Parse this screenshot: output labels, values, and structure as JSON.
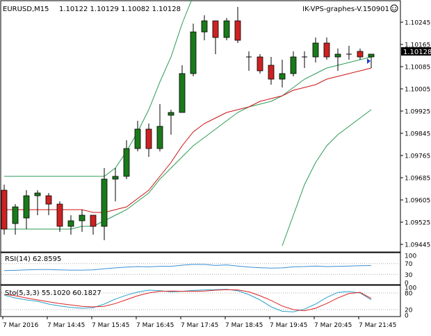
{
  "header": {
    "symbol": "EURUSD,M15",
    "ohlc_text": "1.10122 1.10129 1.10082 1.10128",
    "expert_label": "IK-VPS-graphes-V.150901",
    "smiley_icon": "smiley-icon"
  },
  "colors": {
    "bull": "#1a7a1a",
    "bear": "#cc2222",
    "wick": "#000000",
    "ma_red": "#cc1111",
    "band_green": "#2a9a55",
    "rsi_line": "#3a8fd6",
    "sto_main": "#2aa0c8",
    "sto_signal": "#dd2222",
    "price_tag_bg": "#000000",
    "level_dotted": "#aaaaaa"
  },
  "chart_data": [
    {
      "type": "candlestick",
      "title": "EURUSD,M15",
      "ylim": [
        1.0942,
        1.1032
      ],
      "y_ticks": [
        "1.10245",
        "1.10165",
        "1.10085",
        "1.10005",
        "1.09925",
        "1.09845",
        "1.09765",
        "1.09685",
        "1.09605",
        "1.09525",
        "1.09445"
      ],
      "current_price": "1.10128",
      "x_tick_labels": [
        "7 Mar 2016",
        "7 Mar 14:45",
        "7 Mar 15:45",
        "7 Mar 16:45",
        "7 Mar 17:45",
        "7 Mar 18:45",
        "7 Mar 19:45",
        "7 Mar 20:45",
        "7 Mar 21:45"
      ],
      "candles": [
        {
          "o": 1.0964,
          "h": 1.0966,
          "l": 1.0948,
          "c": 1.095
        },
        {
          "o": 1.0952,
          "h": 1.0959,
          "l": 1.0948,
          "c": 1.0958
        },
        {
          "o": 1.0954,
          "h": 1.0964,
          "l": 1.095,
          "c": 1.0962
        },
        {
          "o": 1.0962,
          "h": 1.0964,
          "l": 1.0955,
          "c": 1.0963
        },
        {
          "o": 1.0962,
          "h": 1.0963,
          "l": 1.0955,
          "c": 1.0959
        },
        {
          "o": 1.0959,
          "h": 1.096,
          "l": 1.0949,
          "c": 1.0951
        },
        {
          "o": 1.0951,
          "h": 1.0955,
          "l": 1.0948,
          "c": 1.0953
        },
        {
          "o": 1.0953,
          "h": 1.0957,
          "l": 1.0949,
          "c": 1.0955
        },
        {
          "o": 1.0955,
          "h": 1.0955,
          "l": 1.0948,
          "c": 1.0951
        },
        {
          "o": 1.0951,
          "h": 1.0972,
          "l": 1.0946,
          "c": 1.0968
        },
        {
          "o": 1.0968,
          "h": 1.0972,
          "l": 1.096,
          "c": 1.0969
        },
        {
          "o": 1.0969,
          "h": 1.0982,
          "l": 1.0968,
          "c": 1.0979
        },
        {
          "o": 1.0979,
          "h": 1.0989,
          "l": 1.0978,
          "c": 1.0986
        },
        {
          "o": 1.0986,
          "h": 1.0988,
          "l": 1.0976,
          "c": 1.0979
        },
        {
          "o": 1.0979,
          "h": 1.0995,
          "l": 1.0978,
          "c": 1.0987
        },
        {
          "o": 1.0991,
          "h": 1.0993,
          "l": 1.0984,
          "c": 1.0992
        },
        {
          "o": 1.0992,
          "h": 1.1009,
          "l": 1.0992,
          "c": 1.1006
        },
        {
          "o": 1.1006,
          "h": 1.1024,
          "l": 1.1005,
          "c": 1.1021
        },
        {
          "o": 1.1021,
          "h": 1.1027,
          "l": 1.1018,
          "c": 1.1025
        },
        {
          "o": 1.1025,
          "h": 1.1025,
          "l": 1.1013,
          "c": 1.1019
        },
        {
          "o": 1.1019,
          "h": 1.1026,
          "l": 1.1018,
          "c": 1.1025
        },
        {
          "o": 1.1025,
          "h": 1.103,
          "l": 1.1017,
          "c": 1.1018
        },
        {
          "o": 1.1012,
          "h": 1.1014,
          "l": 1.1007,
          "c": 1.1012
        },
        {
          "o": 1.1012,
          "h": 1.1013,
          "l": 1.1006,
          "c": 1.1007
        },
        {
          "o": 1.1009,
          "h": 1.1012,
          "l": 1.1002,
          "c": 1.1004
        },
        {
          "o": 1.1004,
          "h": 1.1011,
          "l": 1.1001,
          "c": 1.1006
        },
        {
          "o": 1.1006,
          "h": 1.1014,
          "l": 1.1005,
          "c": 1.1012
        },
        {
          "o": 1.1012,
          "h": 1.1014,
          "l": 1.1008,
          "c": 1.1012
        },
        {
          "o": 1.1012,
          "h": 1.1019,
          "l": 1.101,
          "c": 1.1017
        },
        {
          "o": 1.1017,
          "h": 1.1019,
          "l": 1.1011,
          "c": 1.1012
        },
        {
          "o": 1.1012,
          "h": 1.1015,
          "l": 1.1007,
          "c": 1.1013
        },
        {
          "o": 1.1013,
          "h": 1.1016,
          "l": 1.1011,
          "c": 1.1013
        },
        {
          "o": 1.1014,
          "h": 1.1015,
          "l": 1.1011,
          "c": 1.1012
        },
        {
          "o": 1.1012,
          "h": 1.1013,
          "l": 1.1008,
          "c": 1.1013
        }
      ],
      "ma_red": [
        1.0957,
        1.0957,
        1.0957,
        1.0957,
        1.0957,
        1.0957,
        1.0957,
        1.0957,
        1.0956,
        1.0956,
        1.0957,
        1.0958,
        1.0961,
        1.0964,
        1.0969,
        1.0974,
        1.098,
        1.0985,
        1.0988,
        1.099,
        1.0992,
        1.0993,
        1.0994,
        1.0996,
        1.0997,
        1.0998,
        1.1,
        1.1001,
        1.1002,
        1.1004,
        1.1005,
        1.1006,
        1.1007,
        1.1008
      ],
      "band_upper": [
        1.0969,
        1.0969,
        1.0969,
        1.0969,
        1.0969,
        1.0969,
        1.0969,
        1.0969,
        1.0969,
        1.0969,
        1.0972,
        1.0978,
        1.0985,
        1.0993,
        1.1003,
        1.1012,
        1.1024,
        1.1034,
        null,
        null,
        null,
        null,
        null,
        null,
        null,
        null,
        null,
        null,
        null,
        null,
        null,
        null,
        null,
        null
      ],
      "band_middle": [
        1.095,
        1.095,
        1.095,
        1.095,
        1.095,
        1.095,
        1.095,
        1.0951,
        1.0951,
        1.0953,
        1.0955,
        1.0957,
        1.096,
        1.0963,
        1.0968,
        1.0972,
        1.0976,
        1.098,
        1.0983,
        1.0986,
        1.0989,
        1.0992,
        1.0994,
        1.0995,
        1.0996,
        1.0998,
        1.1001,
        1.1004,
        1.1006,
        1.1008,
        1.1009,
        1.101,
        1.1011,
        1.1012
      ],
      "band_lower": [
        null,
        null,
        null,
        null,
        null,
        null,
        null,
        null,
        null,
        null,
        null,
        null,
        null,
        null,
        null,
        null,
        null,
        null,
        null,
        null,
        null,
        null,
        null,
        null,
        null,
        1.0944,
        1.0955,
        1.0966,
        1.0974,
        1.098,
        1.0984,
        1.0987,
        1.099,
        1.0993
      ]
    },
    {
      "type": "line",
      "title": "RSI(14) 62.8595",
      "ylim": [
        0,
        100
      ],
      "y_ticks": [
        "100",
        "70",
        "30",
        "0"
      ],
      "levels": [
        70,
        30
      ],
      "values": [
        44,
        45,
        47,
        48,
        48,
        47,
        46,
        46,
        47,
        51,
        54,
        57,
        59,
        58,
        60,
        60,
        64,
        67,
        67,
        63,
        65,
        61,
        57,
        55,
        53,
        54,
        58,
        59,
        61,
        59,
        60,
        61,
        62,
        62.9
      ]
    },
    {
      "type": "line",
      "title": "Sto(5,3,3) 55.1020 60.1827",
      "ylim": [
        0,
        100
      ],
      "y_ticks": [
        "100",
        "80",
        "20",
        "0"
      ],
      "levels": [
        80,
        20
      ],
      "series": [
        {
          "values": [
            72,
            62,
            55,
            50,
            40,
            33,
            28,
            25,
            27,
            40,
            58,
            72,
            83,
            90,
            88,
            84,
            86,
            89,
            91,
            92,
            93,
            88,
            74,
            55,
            30,
            14,
            12,
            22,
            40,
            64,
            82,
            85,
            80,
            55
          ]
        },
        {
          "values": [
            75,
            70,
            62,
            55,
            48,
            42,
            37,
            32,
            30,
            32,
            42,
            56,
            70,
            80,
            86,
            87,
            86,
            86,
            87,
            90,
            92,
            91,
            84,
            70,
            53,
            33,
            20,
            16,
            25,
            42,
            62,
            78,
            82,
            60
          ]
        }
      ]
    }
  ]
}
